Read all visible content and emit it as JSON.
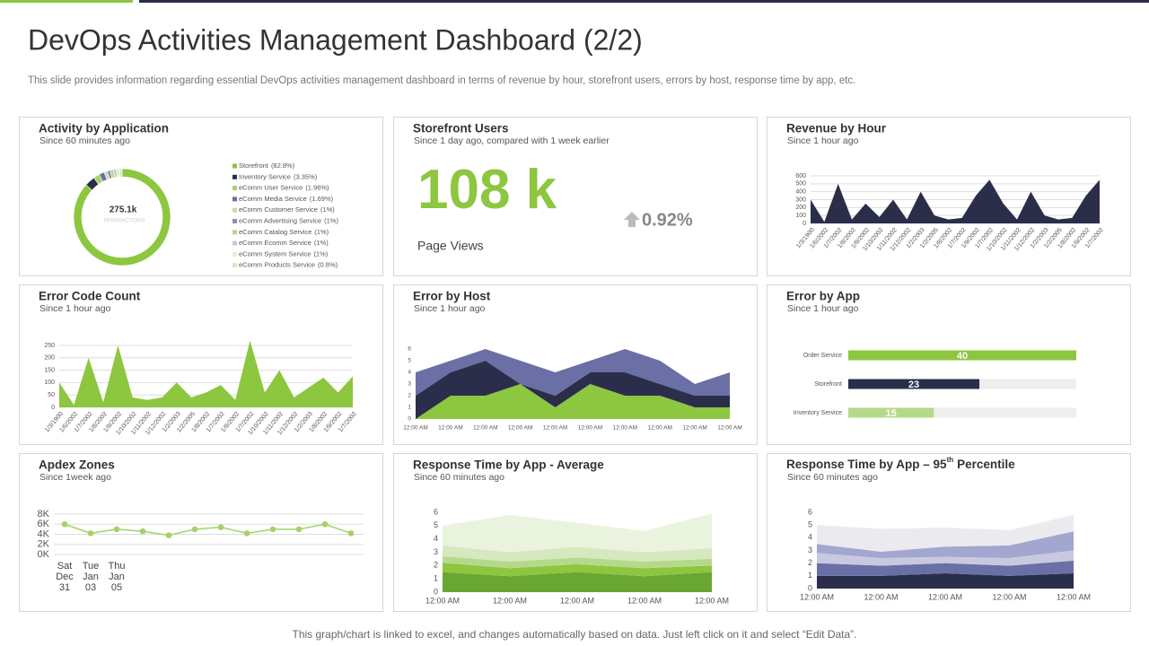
{
  "title": "DevOps Activities Management Dashboard (2/2)",
  "subtitle": "This slide provides information regarding essential DevOps activities management dashboard in terms of revenue by hour, storefront users, errors by host, response time by app, etc.",
  "footer": "This graph/chart is linked to excel, and changes automatically based on data. Just left click on it and select “Edit Data”.",
  "chart_data": [
    {
      "type": "donut",
      "title": "Activity by Application",
      "subtitle": "Since 60 minutes ago",
      "center_value": "275.1k",
      "center_label": "TRANSACTIONS",
      "categories": [
        "Storefront",
        "Inventory Service",
        "eComm User Service",
        "eComm Media Service",
        "eComm Customer Service",
        "eComm Advertising Service",
        "eComm Catalog Service",
        "eComm Ecomm Service",
        "eComm System Service",
        "eComm Products Service"
      ],
      "values": [
        82.8,
        3.35,
        1.96,
        1.69,
        1,
        1,
        1,
        1,
        1,
        0.8
      ],
      "value_labels": [
        "(82.8%)",
        "(3.35%)",
        "(1.96%)",
        "(1.69%)",
        "(1%)",
        "(1%)",
        "(1%)",
        "(1%)",
        "(1%)",
        "(0.8%)"
      ],
      "colors": [
        "#8dc63f",
        "#2b2e4a",
        "#a5d16b",
        "#6a6fa6",
        "#c5e0a5",
        "#8e90a8",
        "#b5d98a",
        "#c8c9d6",
        "#e2efd2",
        "#d5e8be"
      ]
    },
    {
      "type": "kpi",
      "title": "Storefront Users",
      "subtitle": "Since 1 day ago, compared with 1 week earlier",
      "value": "108 k",
      "caption": "Page Views",
      "change": "0.92%",
      "color": "#8dc63f"
    },
    {
      "type": "area",
      "title": "Revenue by Hour",
      "subtitle": "Since 1 hour ago",
      "categories": [
        "1/3/1900",
        "1/6/2002",
        "1/7/2002",
        "1/8/2002",
        "1/9/2002",
        "1/10/2002",
        "1/11/2002",
        "1/12/2002",
        "1/2/2003",
        "1/2/2005",
        "1/8/2002",
        "1/7/2002",
        "1/9/2002",
        "1/7/2002",
        "1/10/2002",
        "1/11/2002",
        "1/12/2002",
        "1/2/2003",
        "1/2/2005",
        "1/8/2002",
        "1/9/2002",
        "1/7/2002"
      ],
      "values": [
        300,
        20,
        500,
        50,
        250,
        80,
        300,
        50,
        400,
        100,
        50,
        70,
        350,
        550,
        250,
        50,
        400,
        100,
        50,
        70,
        350,
        550
      ],
      "color": "#2b2e4a",
      "ylim": [
        0,
        600
      ],
      "yticks": [
        0,
        100,
        200,
        300,
        400,
        500,
        600
      ],
      "grid": true
    },
    {
      "type": "area",
      "title": "Error Code Count",
      "subtitle": "Since 1 hour ago",
      "categories": [
        "1/3/1900",
        "1/6/2002",
        "1/7/2002",
        "1/8/2002",
        "1/9/2002",
        "1/10/2002",
        "1/11/2002",
        "1/12/2002",
        "1/2/2003",
        "1/2/2005",
        "1/8/2002",
        "1/7/2002",
        "1/9/2002",
        "1/7/2002",
        "1/10/2002",
        "1/11/2002",
        "1/12/2002",
        "1/2/2003",
        "1/8/2002",
        "1/9/2002",
        "1/7/2002"
      ],
      "values": [
        100,
        10,
        200,
        20,
        250,
        40,
        30,
        40,
        100,
        40,
        60,
        90,
        30,
        270,
        60,
        150,
        40,
        80,
        120,
        60,
        125
      ],
      "color": "#8dc63f",
      "ylim": [
        0,
        250
      ],
      "yticks": [
        0,
        50,
        100,
        150,
        200,
        250
      ],
      "grid": true
    },
    {
      "type": "stacked_area",
      "title": "Error by Host",
      "subtitle": "Since 1 hour ago",
      "categories": [
        "12:00 AM",
        "12:00 AM",
        "12:00 AM",
        "12:00 AM",
        "12:00 AM",
        "12:00 AM",
        "12:00 AM",
        "12:00 AM",
        "12:00 AM",
        "12:00 AM"
      ],
      "series": [
        {
          "color": "#8dc63f",
          "values": [
            0,
            2,
            2,
            3,
            1,
            3,
            2,
            2,
            1,
            1
          ]
        },
        {
          "color": "#2b2e4a",
          "values": [
            2,
            2,
            3,
            0,
            1,
            1,
            2,
            1,
            1,
            1
          ]
        },
        {
          "color": "#6a6fa6",
          "values": [
            2,
            1,
            1,
            2,
            2,
            1,
            2,
            2,
            1,
            2
          ]
        }
      ],
      "ylim": [
        0,
        6
      ],
      "yticks": [
        0,
        1,
        2,
        3,
        4,
        5,
        6
      ],
      "grid": false
    },
    {
      "type": "hbar",
      "title": "Error by App",
      "subtitle": "Since 1 hour ago",
      "categories": [
        "Order Service",
        "Storefront",
        "Inventory Service"
      ],
      "values": [
        40,
        23,
        15
      ],
      "colors": [
        "#8dc63f",
        "#2b2e4a",
        "#b5d98a"
      ],
      "xlim": [
        0,
        40
      ]
    },
    {
      "type": "line",
      "title": "Apdex Zones",
      "subtitle": "Since 1week ago",
      "categories": [
        [
          "Sat",
          "Dec",
          "31"
        ],
        [
          "Tue",
          "Jan",
          "03"
        ],
        [
          "Thu",
          "Jan",
          "05"
        ],
        null,
        null,
        null,
        null,
        null,
        null,
        null,
        null,
        null
      ],
      "values": [
        6000,
        4200,
        5000,
        4600,
        3800,
        5000,
        5400,
        4200,
        5000,
        5000,
        6000,
        4200
      ],
      "color": "#a5d16b",
      "ylim": [
        0,
        8000
      ],
      "yticks": [
        {
          "value": 0,
          "label": "0K"
        },
        {
          "value": 2000,
          "label": "2K"
        },
        {
          "value": 4000,
          "label": "4K"
        },
        {
          "value": 6000,
          "label": "6K"
        },
        {
          "value": 8000,
          "label": "8K"
        }
      ],
      "grid": true
    },
    {
      "type": "stacked_area",
      "title": "Response Time by App - Average",
      "subtitle": "Since 60 minutes ago",
      "categories": [
        "12:00 AM",
        "12:00 AM",
        "12:00 AM",
        "12:00 AM",
        "12:00 AM"
      ],
      "series": [
        {
          "color": "#6aa632",
          "values": [
            1.5,
            1.2,
            1.5,
            1.2,
            1.5
          ]
        },
        {
          "color": "#8dc63f",
          "values": [
            0.7,
            0.6,
            0.6,
            0.6,
            0.5
          ]
        },
        {
          "color": "#b5d98a",
          "values": [
            0.5,
            0.5,
            0.5,
            0.5,
            0.5
          ]
        },
        {
          "color": "#d5e8be",
          "values": [
            0.8,
            0.7,
            0.8,
            0.7,
            0.8
          ]
        },
        {
          "color": "#e9f3dd",
          "values": [
            1.5,
            2.8,
            1.8,
            1.6,
            2.6
          ]
        }
      ],
      "ylim": [
        0,
        6
      ],
      "yticks": [
        0,
        1,
        2,
        3,
        4,
        5,
        6
      ],
      "grid": false
    },
    {
      "type": "stacked_area",
      "title_parts": [
        "Response Time by App – 95",
        "th",
        "Percentile"
      ],
      "subtitle": "Since 60 minutes ago",
      "categories": [
        "12:00 AM",
        "12:00 AM",
        "12:00 AM",
        "12:00 AM",
        "12:00 AM"
      ],
      "series": [
        {
          "color": "#2b2e4a",
          "values": [
            1,
            1,
            1.2,
            1,
            1.2
          ]
        },
        {
          "color": "#6a6fa6",
          "values": [
            1,
            0.8,
            0.8,
            0.8,
            1
          ]
        },
        {
          "color": "#c8c9e0",
          "values": [
            0.8,
            0.6,
            0.5,
            0.6,
            0.8
          ]
        },
        {
          "color": "#a3a6cf",
          "values": [
            0.7,
            0.5,
            0.8,
            1,
            1.5
          ]
        },
        {
          "color": "#ebebef",
          "values": [
            1.5,
            1.8,
            1.5,
            1.2,
            1.3
          ]
        }
      ],
      "ylim": [
        0,
        6
      ],
      "yticks": [
        0,
        1,
        2,
        3,
        4,
        5,
        6
      ],
      "grid": false
    }
  ]
}
